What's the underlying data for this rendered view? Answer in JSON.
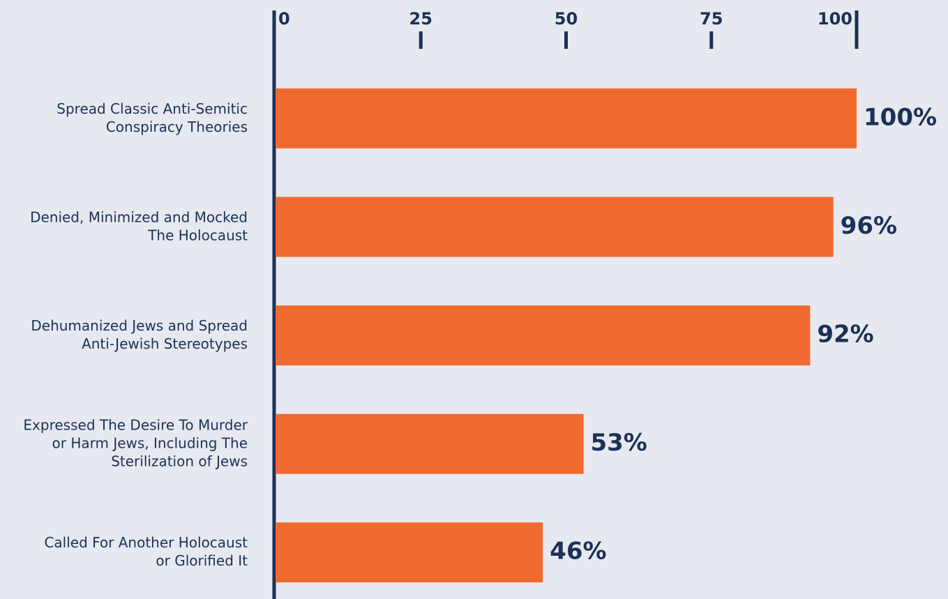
{
  "chart_data": {
    "type": "barh",
    "categories": [
      "Spread Classic Anti-Semitic\nConspiracy Theories",
      "Denied, Minimized and Mocked\nThe Holocaust",
      "Dehumanized Jews and Spread\nAnti-Jewish Stereotypes",
      "Expressed The Desire To Murder\nor Harm Jews, Including The\nSterilization of Jews",
      "Called For Another Holocaust\nor Glorified It"
    ],
    "values": [
      100,
      96,
      92,
      53,
      46
    ],
    "value_labels": [
      "100%",
      "96%",
      "92%",
      "53%",
      "46%"
    ],
    "color": "#f06a30",
    "xlim": [
      0,
      100
    ],
    "xticks": [
      0,
      25,
      50,
      75,
      100
    ]
  }
}
